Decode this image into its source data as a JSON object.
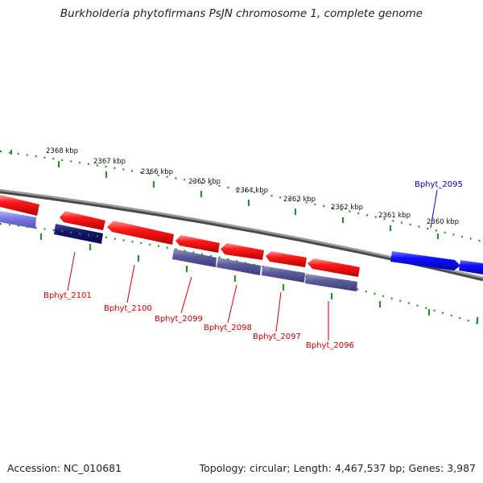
{
  "title": "Burkholderia phytofirmans PsJN chromosome 1, complete genome",
  "footer": {
    "accession": "Accession: NC_010681",
    "stats": "Topology: circular; Length: 4,467,537 bp; Genes: 3,987"
  },
  "colors": {
    "forward_feature": "#ff0000",
    "reverse_feature": "#0000ff",
    "forward_cds_track": "#1a1a6e",
    "reverse_cds_track": "#6a6aa8",
    "backbone": "#7a7a7a",
    "tick_marks": "#2e8b2e",
    "forward_label": "#cc0000",
    "reverse_label": "#0000cc"
  },
  "kbp_labels": [
    "2368 kbp",
    "2367 kbp",
    "2366 kbp",
    "2365 kbp",
    "2364 kbp",
    "2363 kbp",
    "2362 kbp",
    "2361 kbp",
    "2360 kbp"
  ],
  "genes": [
    {
      "name": "Bphyt_2101",
      "strand": "forward"
    },
    {
      "name": "Bphyt_2100",
      "strand": "forward"
    },
    {
      "name": "Bphyt_2099",
      "strand": "forward"
    },
    {
      "name": "Bphyt_2098",
      "strand": "forward"
    },
    {
      "name": "Bphyt_2097",
      "strand": "forward"
    },
    {
      "name": "Bphyt_2096",
      "strand": "forward"
    },
    {
      "name": "Bphyt_2095",
      "strand": "reverse"
    }
  ]
}
